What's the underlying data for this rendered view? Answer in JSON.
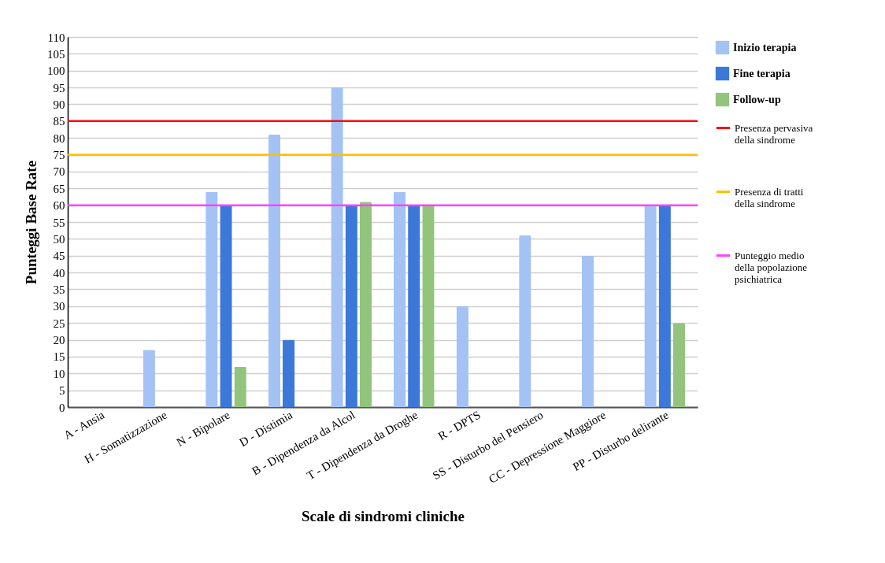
{
  "chart_data": {
    "type": "bar",
    "xlabel": "Scale di sindromi cliniche",
    "ylabel": "Punteggi Base Rate",
    "categories": [
      "A - Ansia",
      "H - Somatizzazione",
      "N - Bipolare",
      "D - Distimia",
      "B - Dipendenza da Alcol",
      "T - Dipendenza da Droghe",
      "R - DPTS",
      "SS - Disturbo del Pensiero",
      "CC - Depressione Maggiore",
      "PP - Disturbo delirante"
    ],
    "series": [
      {
        "name": "Inizio terapia",
        "color": "#a4c2f4",
        "values": [
          null,
          17,
          64,
          81,
          95,
          64,
          30,
          51,
          45,
          60
        ]
      },
      {
        "name": "Fine terapia",
        "color": "#3c78d8",
        "values": [
          null,
          null,
          60,
          20,
          60,
          60,
          null,
          null,
          null,
          60
        ]
      },
      {
        "name": "Follow-up",
        "color": "#93c47d",
        "values": [
          null,
          null,
          12,
          null,
          61,
          60,
          null,
          null,
          null,
          25
        ]
      }
    ],
    "ylim": [
      0,
      110
    ],
    "yticks": [
      0,
      5,
      10,
      15,
      20,
      25,
      30,
      35,
      40,
      45,
      50,
      55,
      60,
      65,
      70,
      75,
      80,
      85,
      90,
      95,
      100,
      105,
      110
    ],
    "ref_lines": [
      {
        "axis": "y",
        "value": 85,
        "label": "Presenza pervasiva della sindrome",
        "color": "#ff0000"
      },
      {
        "axis": "y",
        "value": 75,
        "label": "Presenza di tratti della sindrome",
        "color": "#ffbf00"
      },
      {
        "axis": "y",
        "value": 60,
        "label": "Punteggio medio della popolazione psichiatrica",
        "color": "#ff44ff"
      }
    ],
    "grid": "y",
    "legend": "right"
  }
}
